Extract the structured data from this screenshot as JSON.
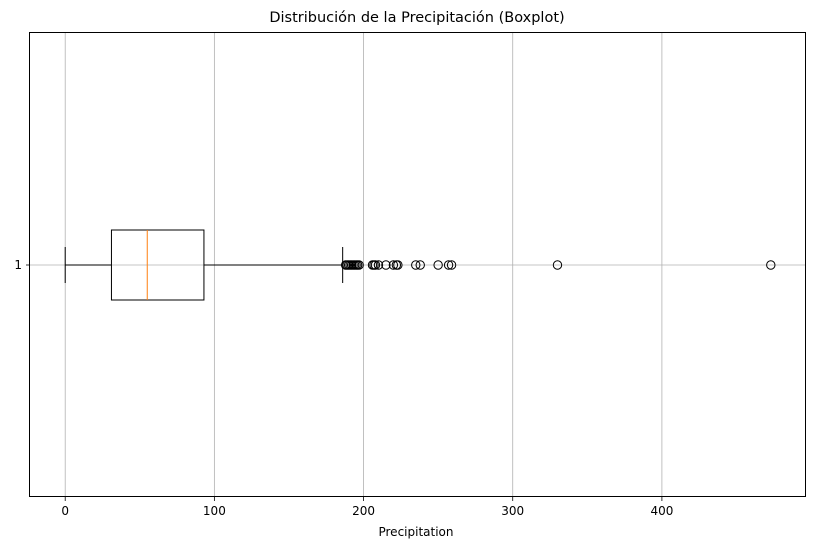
{
  "chart_data": {
    "type": "boxplot",
    "orientation": "horizontal",
    "title": "Distribución de la Precipitación (Boxplot)",
    "xlabel": "Precipitation",
    "ylabel": "",
    "xlim": [
      -23.6,
      496.6
    ],
    "x_ticks": [
      0,
      100,
      200,
      300,
      400
    ],
    "y_ticks": [
      "1"
    ],
    "grid": true,
    "boxes": [
      {
        "label": "1",
        "whisker_low": 0,
        "q1": 31,
        "median": 55,
        "q3": 93,
        "whisker_high": 186,
        "outliers": [
          188,
          189,
          190,
          191,
          192,
          193,
          194,
          195,
          196,
          197,
          206,
          207,
          208,
          210,
          215,
          220,
          222,
          223,
          235,
          238,
          250,
          257,
          259,
          330,
          473
        ]
      }
    ],
    "colors": {
      "box": "#000000",
      "median": "#ff7f0e",
      "grid": "#b0b0b0"
    }
  }
}
